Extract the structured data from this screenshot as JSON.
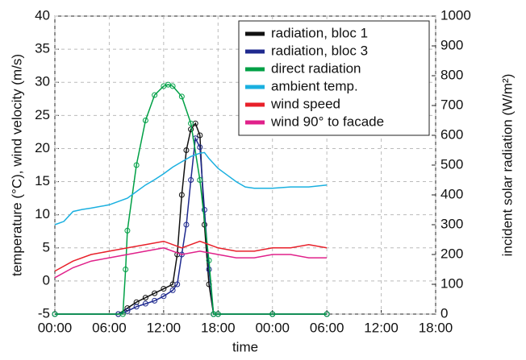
{
  "chart_data": {
    "type": "line",
    "xlabel": "time",
    "ylabel": "temperature (°C), wind velocity (m/s)",
    "y2label": "incident solar radiation (W/m²)",
    "xlim": [
      0,
      42
    ],
    "xticks": [
      {
        "value": 0,
        "label": "00:00"
      },
      {
        "value": 6,
        "label": "06:00"
      },
      {
        "value": 12,
        "label": "12:00"
      },
      {
        "value": 18,
        "label": "18:00"
      },
      {
        "value": 24,
        "label": "00:00"
      },
      {
        "value": 30,
        "label": "06:00"
      },
      {
        "value": 36,
        "label": "12:00"
      },
      {
        "value": 42,
        "label": "18:00"
      }
    ],
    "ylim": [
      -5,
      40
    ],
    "yticks": [
      -5,
      0,
      5,
      10,
      15,
      20,
      25,
      30,
      35,
      40
    ],
    "y2lim": [
      0,
      1000
    ],
    "y2ticks": [
      0,
      100,
      200,
      300,
      400,
      500,
      600,
      700,
      800,
      900,
      1000
    ],
    "grid": true,
    "legend": "upper right",
    "series": [
      {
        "name": "radiation, bloc 1",
        "color": "#111111",
        "axis": "y2",
        "marker": "circle",
        "x": [
          0,
          7,
          8,
          9,
          10,
          11,
          12,
          13,
          13.5,
          14,
          14.5,
          15,
          15.5,
          16,
          16.5,
          17,
          17.5,
          18,
          24,
          30
        ],
        "values": [
          0,
          0,
          20,
          40,
          55,
          70,
          85,
          100,
          200,
          400,
          550,
          620,
          640,
          600,
          300,
          100,
          0,
          0,
          0,
          0
        ]
      },
      {
        "name": "radiation, bloc 3",
        "color": "#1f2a8f",
        "axis": "y2",
        "marker": "circle",
        "x": [
          0,
          7,
          8,
          9,
          10,
          11,
          12,
          13,
          13.5,
          14,
          14.5,
          15,
          15.5,
          16,
          16.5,
          17,
          17.5,
          18,
          24,
          30
        ],
        "values": [
          0,
          0,
          10,
          25,
          35,
          45,
          60,
          80,
          100,
          200,
          300,
          450,
          590,
          560,
          350,
          150,
          0,
          0,
          0,
          0
        ]
      },
      {
        "name": "direct radiation",
        "color": "#00a046",
        "axis": "y2",
        "marker": "circle",
        "x": [
          0,
          7.5,
          7.8,
          8,
          9,
          10,
          11,
          12,
          12.5,
          13,
          14,
          15,
          16,
          17,
          17.5,
          18,
          24,
          30
        ],
        "values": [
          0,
          0,
          150,
          280,
          500,
          650,
          735,
          765,
          770,
          765,
          730,
          640,
          450,
          180,
          0,
          0,
          0,
          0
        ]
      },
      {
        "name": "ambient temp.",
        "color": "#1ab0e0",
        "x": [
          0,
          1,
          2,
          3,
          4,
          6,
          8,
          9,
          10,
          11,
          12,
          13,
          14,
          15,
          16,
          16.5,
          17,
          18,
          19,
          20,
          21,
          22,
          24,
          26,
          28,
          30
        ],
        "values": [
          8.5,
          9,
          10.5,
          10.8,
          11,
          11.5,
          12.5,
          13.5,
          14.5,
          15.3,
          16.2,
          17.2,
          18,
          18.8,
          19.3,
          19.4,
          18.5,
          17,
          16,
          15,
          14.2,
          14,
          14,
          14.2,
          14.2,
          14.5
        ]
      },
      {
        "name": "wind speed",
        "color": "#e8202a",
        "x": [
          0,
          2,
          4,
          6,
          8,
          10,
          12,
          14,
          16,
          18,
          20,
          22,
          24,
          26,
          28,
          30
        ],
        "values": [
          1.5,
          3,
          4,
          4.5,
          5,
          5.5,
          6,
          5,
          6,
          5,
          4.5,
          4.5,
          5,
          5,
          5.5,
          5
        ]
      },
      {
        "name": "wind 90° to facade",
        "color": "#e0208a",
        "x": [
          0,
          2,
          4,
          6,
          8,
          10,
          12,
          14,
          16,
          18,
          20,
          22,
          24,
          26,
          28,
          30
        ],
        "values": [
          0.5,
          2,
          3,
          3.5,
          4,
          4.5,
          5,
          4,
          4.5,
          4,
          3.5,
          3.5,
          4,
          4,
          3.5,
          3.5
        ]
      }
    ]
  }
}
